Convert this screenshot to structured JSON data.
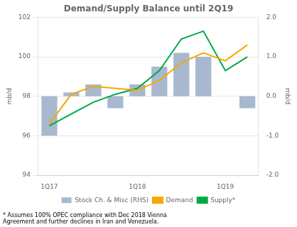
{
  "chart_data": {
    "type": "bar",
    "title": "Demand/Supply Balance until 2Q19",
    "categories": [
      "1Q17",
      null,
      null,
      null,
      "1Q18",
      null,
      null,
      null,
      "1Q19",
      null
    ],
    "series": [
      {
        "name": "Stock Ch. & Misc (RHS)",
        "type": "bar",
        "axis": "y2",
        "color": "#a8b8cf",
        "values": [
          -1.0,
          0.1,
          0.3,
          -0.3,
          0.3,
          0.75,
          1.1,
          1.0,
          0.0,
          -0.3
        ]
      },
      {
        "name": "Demand",
        "type": "line",
        "color": "#f5a800",
        "values": [
          96.6,
          98.1,
          98.5,
          98.4,
          98.3,
          98.8,
          99.7,
          100.2,
          99.8,
          100.6
        ]
      },
      {
        "name": "Supply*",
        "type": "line",
        "color": "#00aa44",
        "values": [
          96.5,
          97.1,
          97.7,
          98.1,
          98.4,
          99.3,
          100.9,
          101.3,
          99.3,
          100.0
        ]
      }
    ],
    "ylabel": "mb/d",
    "y2label": "mb/d",
    "ylim": [
      94,
      102
    ],
    "yticks": [
      94,
      96,
      98,
      100,
      102
    ],
    "y2lim": [
      -2.0,
      2.0
    ],
    "y2ticks": [
      {
        "value": -2.0,
        "label": "-2.0"
      },
      {
        "value": -1.0,
        "label": "-1.0"
      },
      {
        "value": 0.0,
        "label": "0.0"
      },
      {
        "value": 1.0,
        "label": "1.0"
      },
      {
        "value": 2.0,
        "label": "2.0"
      }
    ],
    "footnote": [
      "* Assumes 100% OPEC compliance with Dec 2018 Vienna",
      "Agreement and further declines in Iran and Venezuela."
    ],
    "grid": true,
    "legend": "bottom"
  }
}
